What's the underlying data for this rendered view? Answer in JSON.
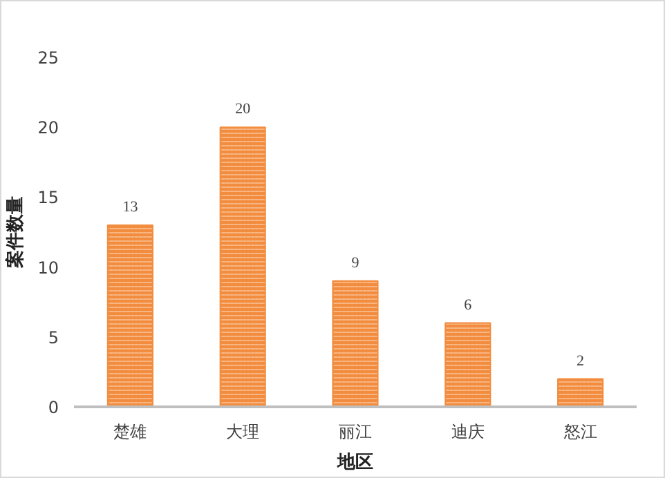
{
  "chart_data": {
    "type": "bar",
    "xlabel": "地区",
    "ylabel": "案件数量",
    "categories": [
      "楚雄",
      "大理",
      "丽江",
      "迪庆",
      "怒江"
    ],
    "values": [
      13,
      20,
      9,
      6,
      2
    ],
    "color": "#f28c3e",
    "ylim": [
      0,
      25
    ],
    "yticks": [
      0,
      5,
      10,
      15,
      20,
      25
    ],
    "grid": false,
    "data_labels": true
  }
}
